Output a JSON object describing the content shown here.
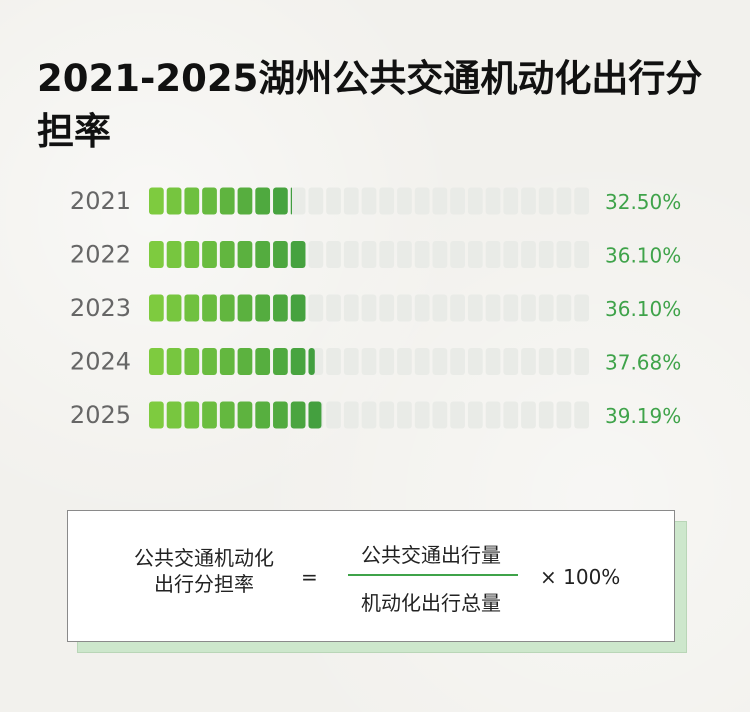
{
  "title": "2021-2025湖州公共交通机动化出行分担率",
  "colors": {
    "filled_light": "#7ecb3f",
    "filled_dark": "#3f9d3f",
    "empty": "#e9ebe7",
    "value_text": "#3fa34a",
    "year_text": "#666666"
  },
  "chart_data": {
    "type": "bar",
    "categories": [
      "2021",
      "2022",
      "2023",
      "2024",
      "2025"
    ],
    "values": [
      32.5,
      36.1,
      36.1,
      37.68,
      39.19
    ],
    "value_labels": [
      "32.50%",
      "36.10%",
      "36.10%",
      "37.68%",
      "39.19%"
    ],
    "unit": "%",
    "xlim": [
      0,
      100
    ],
    "segments_per_bar": 25,
    "grid": false
  },
  "formula": {
    "left_line1": "公共交通机动化",
    "left_line2": "出行分担率",
    "equals": "=",
    "numerator": "公共交通出行量",
    "denominator": "机动化出行总量",
    "multiplier": "× 100%"
  }
}
